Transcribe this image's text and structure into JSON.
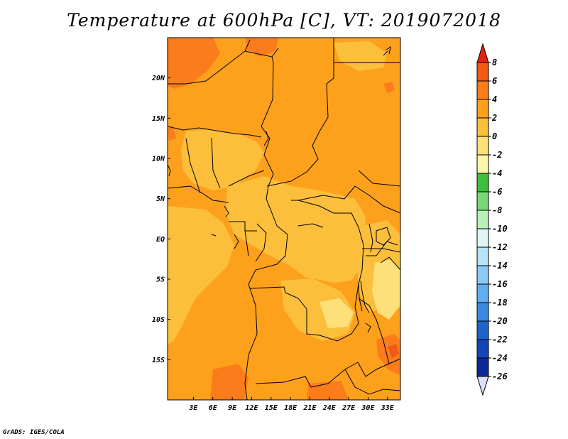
{
  "title": "Temperature at 600hPa [C], VT: 2019072018",
  "credit": "GrADS: IGES/COLA",
  "map": {
    "lon_range": [
      -1,
      35
    ],
    "lat_range": [
      -20,
      25
    ],
    "lat_ticks": [
      {
        "value": 20,
        "label": "20N"
      },
      {
        "value": 15,
        "label": "15N"
      },
      {
        "value": 10,
        "label": "10N"
      },
      {
        "value": 5,
        "label": "5N"
      },
      {
        "value": 0,
        "label": "EQ"
      },
      {
        "value": -5,
        "label": "5S"
      },
      {
        "value": -10,
        "label": "10S"
      },
      {
        "value": -15,
        "label": "15S"
      }
    ],
    "lon_ticks": [
      {
        "value": 3,
        "label": "3E"
      },
      {
        "value": 6,
        "label": "6E"
      },
      {
        "value": 9,
        "label": "9E"
      },
      {
        "value": 12,
        "label": "12E"
      },
      {
        "value": 15,
        "label": "15E"
      },
      {
        "value": 18,
        "label": "18E"
      },
      {
        "value": 21,
        "label": "21E"
      },
      {
        "value": 24,
        "label": "24E"
      },
      {
        "value": 27,
        "label": "27E"
      },
      {
        "value": 30,
        "label": "30E"
      },
      {
        "value": 33,
        "label": "33E"
      }
    ]
  },
  "colorbar": {
    "levels": [
      "8",
      "6",
      "4",
      "2",
      "0",
      "-2",
      "-4",
      "-6",
      "-8",
      "-10",
      "-12",
      "-14",
      "-16",
      "-18",
      "-20",
      "-22",
      "-24",
      "-26"
    ],
    "colors": [
      "#e8200c",
      "#f05a14",
      "#fa7c1a",
      "#fda11c",
      "#fbbf3c",
      "#fde07a",
      "#fdf5a8",
      "#3cbf3c",
      "#78d878",
      "#b8f0b8",
      "#e0f5f5",
      "#b6e2fa",
      "#8ccaf5",
      "#60aef0",
      "#3c8ae0",
      "#1e64c8",
      "#1446b4",
      "#0a2896",
      "#061250",
      "#dce0f8"
    ]
  }
}
